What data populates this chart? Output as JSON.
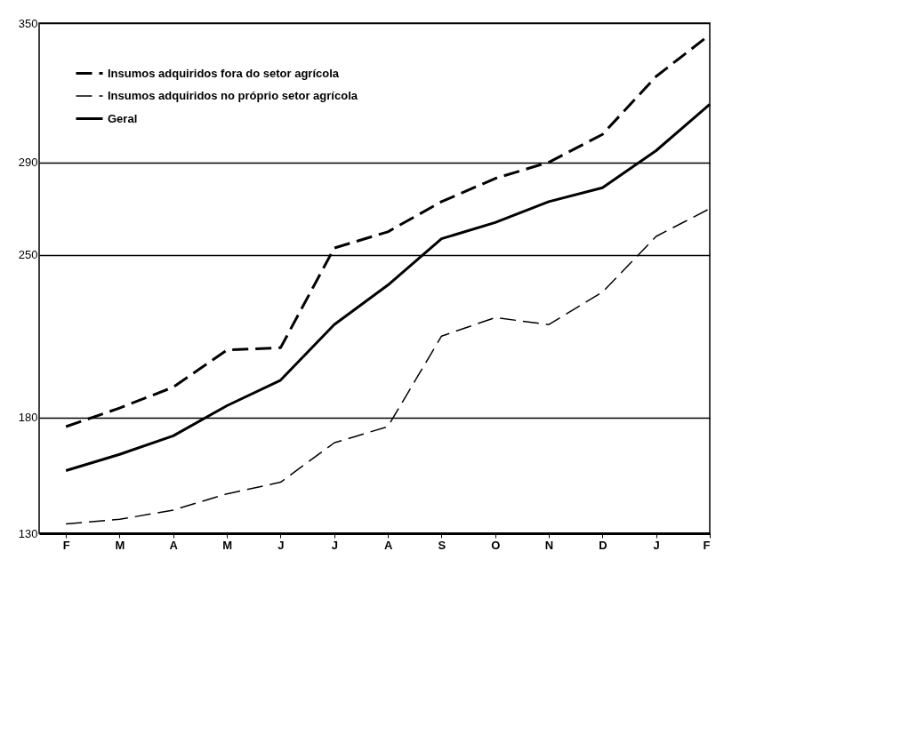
{
  "chart_data": {
    "type": "line",
    "categories": [
      "F",
      "M",
      "A",
      "M",
      "J",
      "J",
      "A",
      "S",
      "O",
      "N",
      "D",
      "J",
      "F"
    ],
    "series": [
      {
        "name": "Insumos adquiridos fora do setor agrícola",
        "color": "#000000",
        "line_style": "dashed",
        "values": [
          176,
          184,
          193,
          209,
          210,
          253,
          260,
          273,
          283,
          290,
          302,
          327,
          345
        ]
      },
      {
        "name": "Insumos adquiridos no próprio setor agrícola",
        "color": "#000000",
        "line_style": "dashed",
        "values": [
          134,
          136,
          140,
          147,
          152,
          169,
          176,
          215,
          223,
          220,
          234,
          258,
          270
        ]
      },
      {
        "name": "Geral",
        "color": "#000000",
        "line_style": "solid",
        "values": [
          157,
          164,
          172,
          185,
          196,
          220,
          237,
          257,
          264,
          273,
          279,
          295,
          315
        ]
      }
    ],
    "ylim": [
      130,
      350
    ],
    "yticks": [
      130,
      180,
      250,
      290,
      350
    ],
    "grid": "y",
    "legend": "top left"
  }
}
